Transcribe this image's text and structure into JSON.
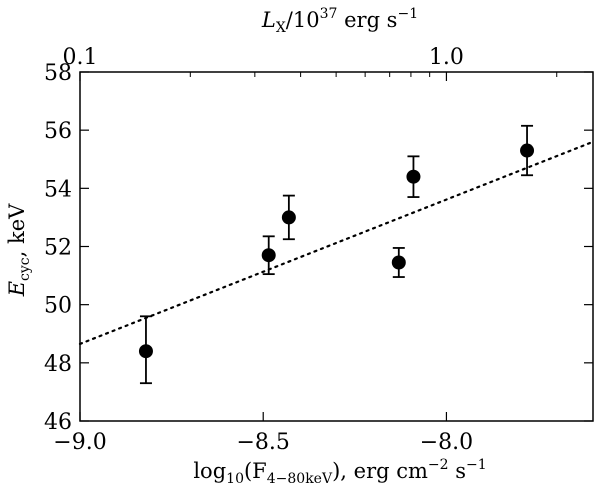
{
  "chart_data": {
    "type": "scatter",
    "title": "",
    "xlabel": {
      "main": "log",
      "sub": "10",
      "open": "(F",
      "flux_sub": "4−80keV",
      "close": "), erg cm",
      "exp1": "−2",
      "mid": " s",
      "exp2": "−1"
    },
    "ylabel": {
      "var": "E",
      "sub": "cyc",
      "rest": ", keV"
    },
    "top_xlabel": {
      "var": "L",
      "sub": "X",
      "mid": "/10",
      "exp": "37",
      "unit": " erg s",
      "unit_exp": "−1"
    },
    "xlim": [
      -9.0,
      -7.6
    ],
    "ylim": [
      46,
      58
    ],
    "xticks": [
      {
        "value": -9.0,
        "label": "−9.0"
      },
      {
        "value": -8.5,
        "label": "−8.5"
      },
      {
        "value": -8.0,
        "label": "−8.0"
      }
    ],
    "yticks": [
      {
        "value": 46,
        "label": "46"
      },
      {
        "value": 48,
        "label": "48"
      },
      {
        "value": 50,
        "label": "50"
      },
      {
        "value": 52,
        "label": "52"
      },
      {
        "value": 54,
        "label": "54"
      },
      {
        "value": 56,
        "label": "56"
      },
      {
        "value": 58,
        "label": "58"
      }
    ],
    "top_ticks": [
      {
        "luminosity": 0.1,
        "label": "0.1"
      },
      {
        "luminosity": 1.0,
        "label": "1.0"
      }
    ],
    "top_axis_log_offset": -9.0,
    "points": [
      {
        "x": -8.82,
        "y": 48.4,
        "err_low": 1.1,
        "err_high": 1.2
      },
      {
        "x": -8.485,
        "y": 51.7,
        "err_low": 0.65,
        "err_high": 0.65
      },
      {
        "x": -8.43,
        "y": 53.0,
        "err_low": 0.75,
        "err_high": 0.75
      },
      {
        "x": -8.13,
        "y": 51.45,
        "err_low": 0.5,
        "err_high": 0.5
      },
      {
        "x": -8.09,
        "y": 54.4,
        "err_low": 0.7,
        "err_high": 0.7
      },
      {
        "x": -7.78,
        "y": 55.3,
        "err_low": 0.85,
        "err_high": 0.85
      }
    ],
    "fit_line": {
      "style": "dotted",
      "x": [
        -9.0,
        -7.6
      ],
      "y": [
        48.65,
        55.6
      ]
    },
    "marker_color": "#000000",
    "grid": false,
    "legend": "none"
  }
}
